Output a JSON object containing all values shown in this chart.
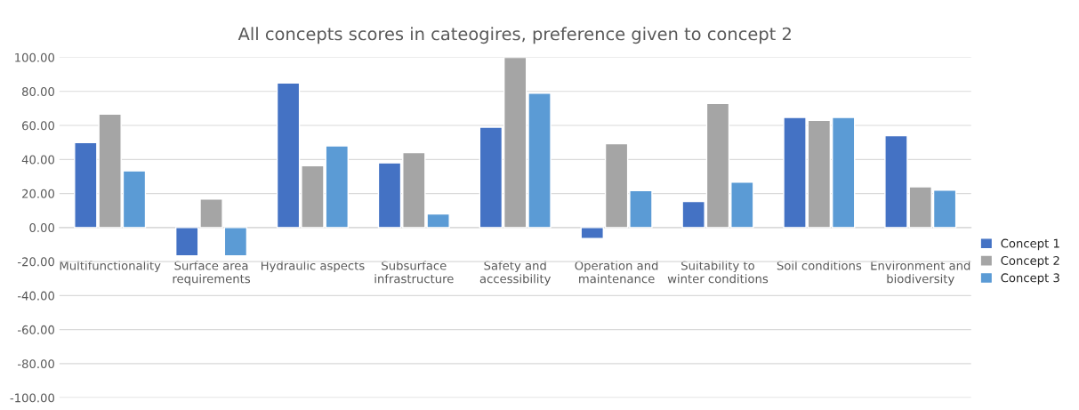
{
  "chart_data": {
    "type": "bar",
    "title": "All concepts scores in cateogires, preference given to concept 2",
    "categories": [
      "Multifunctionality",
      "Surface area requirements",
      "Hydraulic aspects",
      "Subsurface infrastructure",
      "Safety and accessibility",
      "Operation and maintenance",
      "Suitability to winter conditions",
      "Soil conditions",
      "Environment and biodiversity"
    ],
    "series": [
      {
        "name": "Concept 1",
        "color": "#4472c4",
        "values": [
          50,
          -16.7,
          85,
          38,
          59,
          -6.5,
          15.3,
          64.7,
          54
        ]
      },
      {
        "name": "Concept 2",
        "color": "#a5a5a5",
        "values": [
          66.7,
          16.7,
          36.3,
          44,
          100,
          49.3,
          73,
          63,
          24
        ]
      },
      {
        "name": "Concept 3",
        "color": "#5b9bd5",
        "values": [
          33.3,
          -16.7,
          48,
          8,
          79,
          21.7,
          26.7,
          64.7,
          22
        ]
      }
    ],
    "ylim": [
      -100,
      100
    ],
    "yticks": [
      {
        "value": -100,
        "label": "-100.00"
      },
      {
        "value": -80,
        "label": "-80.00"
      },
      {
        "value": -60,
        "label": "-60.00"
      },
      {
        "value": -40,
        "label": "-40.00"
      },
      {
        "value": -20,
        "label": "-20.00"
      },
      {
        "value": 0,
        "label": "0.00"
      },
      {
        "value": 20,
        "label": "20.00"
      },
      {
        "value": 40,
        "label": "40.00"
      },
      {
        "value": 60,
        "label": "60.00"
      },
      {
        "value": 80,
        "label": "80.00"
      },
      {
        "value": 100,
        "label": "100.00"
      }
    ],
    "grid": "y",
    "legend": "right"
  }
}
